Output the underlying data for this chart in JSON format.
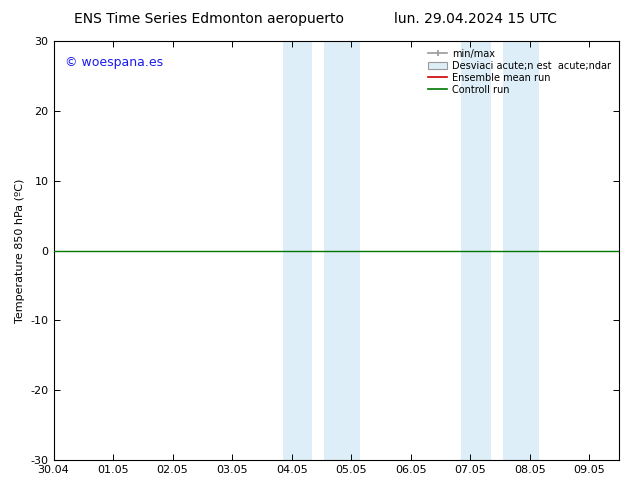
{
  "title_left": "ENS Time Series Edmonton aeropuerto",
  "title_right": "lun. 29.04.2024 15 UTC",
  "ylabel": "Temperature 850 hPa (ºC)",
  "ylim": [
    -30,
    30
  ],
  "yticks": [
    -30,
    -20,
    -10,
    0,
    10,
    20,
    30
  ],
  "xlim_start": 0,
  "xlim_end": 9.5,
  "xtick_labels": [
    "30.04",
    "01.05",
    "02.05",
    "03.05",
    "04.05",
    "05.05",
    "06.05",
    "07.05",
    "08.05",
    "09.05"
  ],
  "xtick_positions": [
    0,
    1,
    2,
    3,
    4,
    5,
    6,
    7,
    8,
    9
  ],
  "shaded_regions": [
    [
      3.85,
      4.35
    ],
    [
      4.55,
      5.15
    ],
    [
      6.85,
      7.35
    ],
    [
      7.55,
      8.15
    ]
  ],
  "shade_color": "#ddeef8",
  "control_run_y": 0,
  "control_run_color": "#007700",
  "ensemble_mean_color": "#cc0000",
  "watermark_text": "© woespana.es",
  "watermark_color": "#1a1aee",
  "background_color": "#ffffff",
  "plot_bg_color": "#ffffff",
  "font_size": 8,
  "title_font_size": 10,
  "legend_fontsize": 7
}
